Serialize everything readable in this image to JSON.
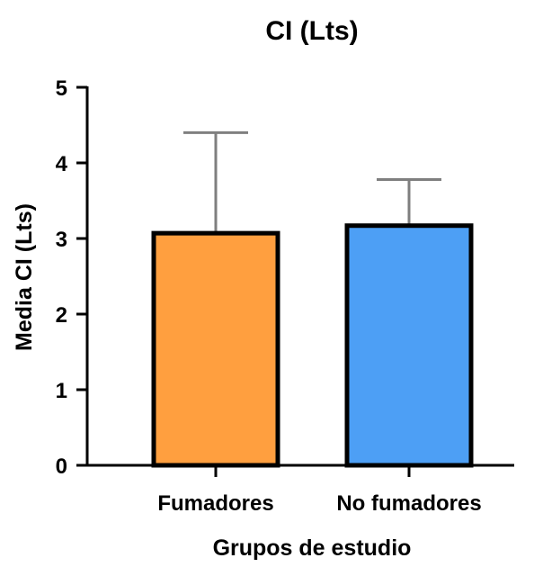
{
  "chart_data": {
    "type": "bar",
    "title": "CI (Lts)",
    "xlabel": "Grupos de estudio",
    "ylabel": "Media CI (Lts)",
    "categories": [
      "Fumadores",
      "No fumadores"
    ],
    "values": [
      3.07,
      3.17
    ],
    "error_upper": [
      4.4,
      3.78
    ],
    "ylim": [
      0,
      5
    ],
    "yticks": [
      "0",
      "1",
      "2",
      "3",
      "4",
      "5"
    ],
    "grid": false,
    "legend": "none",
    "colors": {
      "Fumadores": "#FF9F3F",
      "No fumadores": "#4D9FF5",
      "error_bar": "#7F7F7F",
      "outline": "#000000"
    }
  }
}
